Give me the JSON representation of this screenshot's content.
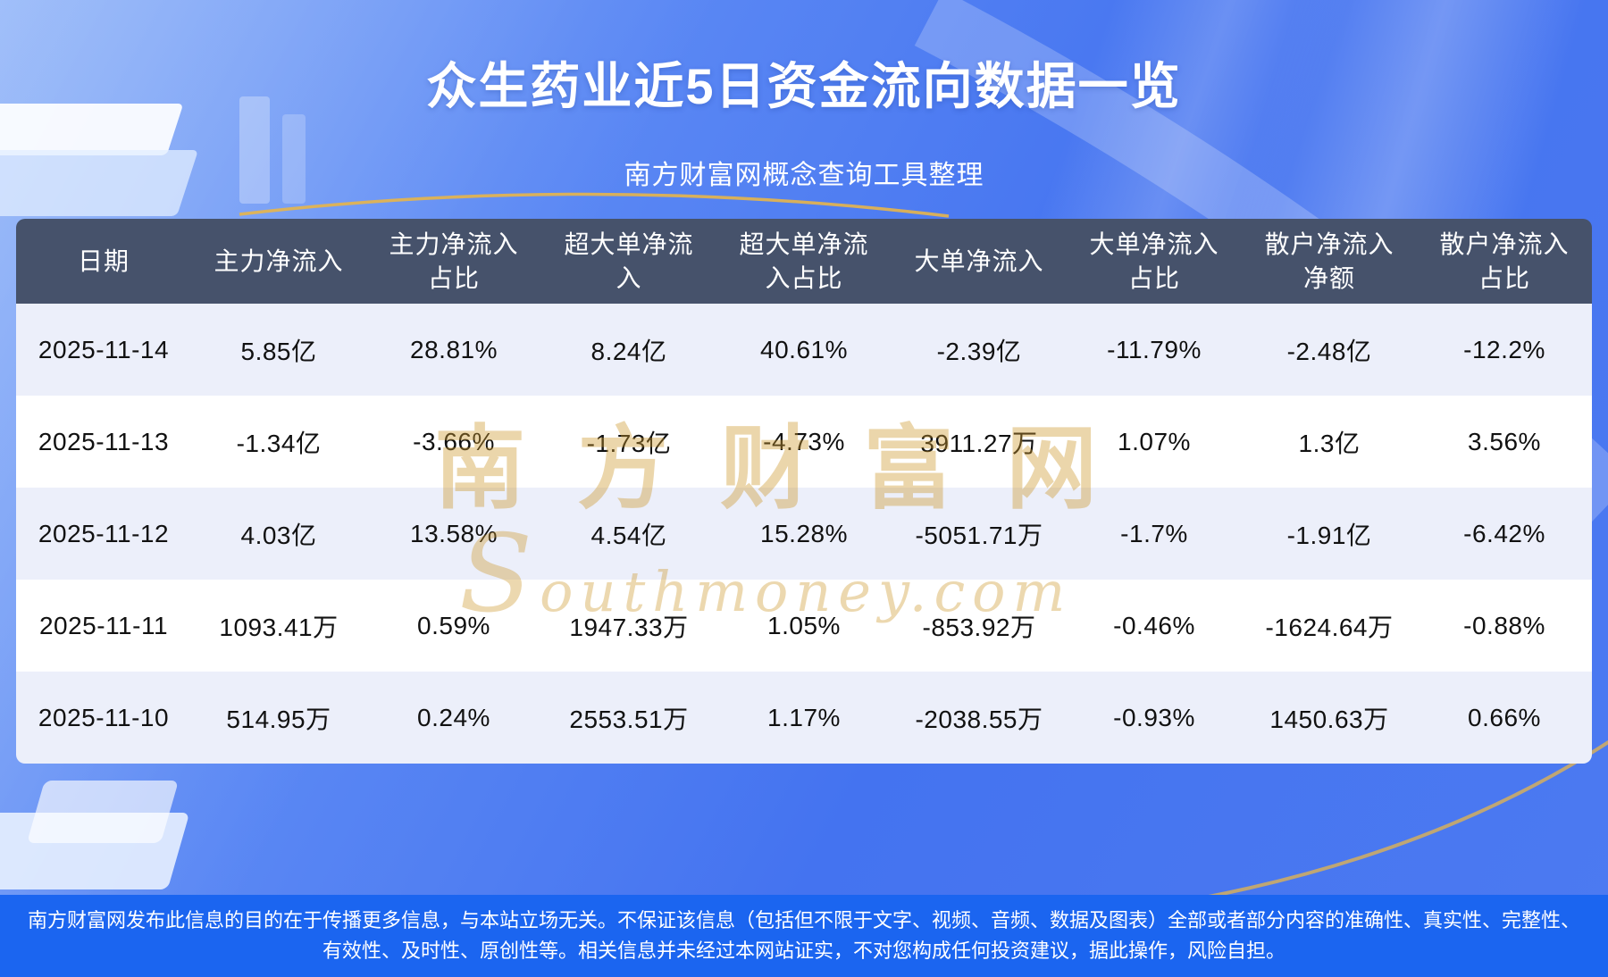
{
  "header": {
    "title": "众生药业近5日资金流向数据一览",
    "subtitle": "南方财富网概念查询工具整理"
  },
  "watermark": {
    "cn": "南方财富网",
    "en": "Southmoney.com"
  },
  "footer": {
    "disclaimer": "南方财富网发布此信息的目的在于传播更多信息，与本站立场无关。不保证该信息（包括但不限于文字、视频、音频、数据及图表）全部或者部分内容的准确性、真实性、完整性、有效性、及时性、原创性等。相关信息并未经过本网站证实，不对您构成任何投资建议，据此操作，风险自担。"
  },
  "colors": {
    "background_blue": "#4473F0",
    "header_row_bg": "#46526B",
    "alt_row_bg": "#ECEFFA",
    "row_bg": "#FFFFFF",
    "footer_bg": "#1B65F0",
    "watermark_gold": "#CE982C",
    "accent_gold": "#E7B54A",
    "title_text": "#FFFFFF",
    "body_text": "#111111"
  },
  "chart_data": {
    "type": "table",
    "title": "众生药业近5日资金流向数据一览",
    "columns": [
      "日期",
      "主力净流入",
      "主力净流入\n占比",
      "超大单净流\n入",
      "超大单净流\n入占比",
      "大单净流入",
      "大单净流入\n占比",
      "散户净流入\n净额",
      "散户净流入\n占比"
    ],
    "rows": [
      [
        "2025-11-14",
        "5.85亿",
        "28.81%",
        "8.24亿",
        "40.61%",
        "-2.39亿",
        "-11.79%",
        "-2.48亿",
        "-12.2%"
      ],
      [
        "2025-11-13",
        "-1.34亿",
        "-3.66%",
        "-1.73亿",
        "-4.73%",
        "3911.27万",
        "1.07%",
        "1.3亿",
        "3.56%"
      ],
      [
        "2025-11-12",
        "4.03亿",
        "13.58%",
        "4.54亿",
        "15.28%",
        "-5051.71万",
        "-1.7%",
        "-1.91亿",
        "-6.42%"
      ],
      [
        "2025-11-11",
        "1093.41万",
        "0.59%",
        "1947.33万",
        "1.05%",
        "-853.92万",
        "-0.46%",
        "-1624.64万",
        "-0.88%"
      ],
      [
        "2025-11-10",
        "514.95万",
        "0.24%",
        "2553.51万",
        "1.17%",
        "-2038.55万",
        "-0.93%",
        "1450.63万",
        "0.66%"
      ]
    ]
  }
}
